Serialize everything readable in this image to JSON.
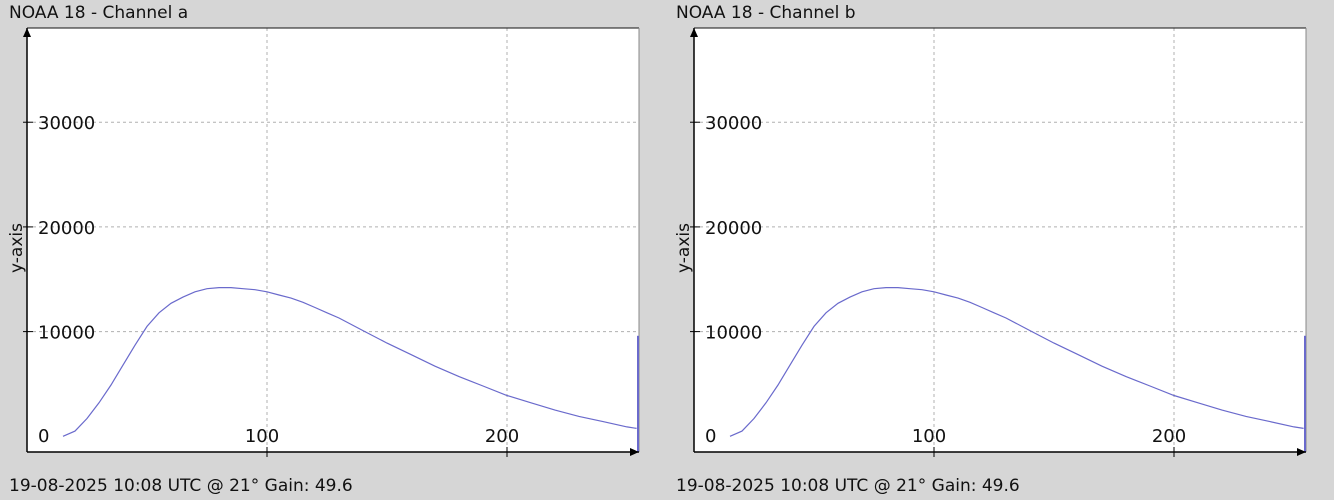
{
  "chart_data": [
    {
      "type": "line",
      "title": "NOAA 18 - Channel a",
      "footer": "19-08-2025 10:08 UTC @ 21° Gain: 49.6",
      "ylabel": "y-axis",
      "xlabel": "",
      "xlim": [
        0,
        255
      ],
      "ylim": [
        -1500,
        39000
      ],
      "xticks": [
        100,
        200
      ],
      "yticks": [
        0,
        10000,
        20000,
        30000
      ],
      "grid": true,
      "series_color": "#6a6acc",
      "series": [
        {
          "x": [
            15,
            20,
            25,
            30,
            35,
            40,
            45,
            50,
            55,
            60,
            65,
            70,
            75,
            80,
            85,
            90,
            95,
            100,
            105,
            110,
            115,
            120,
            125,
            130,
            140,
            150,
            160,
            170,
            180,
            190,
            200,
            210,
            220,
            230,
            240,
            250,
            254
          ],
          "y": [
            0,
            500,
            1700,
            3200,
            4900,
            6800,
            8700,
            10500,
            11800,
            12700,
            13300,
            13800,
            14100,
            14200,
            14200,
            14100,
            14000,
            13800,
            13500,
            13200,
            12800,
            12300,
            11800,
            11300,
            10100,
            8900,
            7800,
            6700,
            5700,
            4800,
            3900,
            3200,
            2500,
            1900,
            1400,
            900,
            750
          ]
        }
      ],
      "end_spike": {
        "x": 255,
        "y": 9600
      }
    },
    {
      "type": "line",
      "title": "NOAA 18 - Channel b",
      "footer": "19-08-2025 10:08 UTC @ 21° Gain: 49.6",
      "ylabel": "y-axis",
      "xlabel": "",
      "xlim": [
        0,
        255
      ],
      "ylim": [
        -1500,
        39000
      ],
      "xticks": [
        100,
        200
      ],
      "yticks": [
        0,
        10000,
        20000,
        30000
      ],
      "grid": true,
      "series_color": "#6a6acc",
      "series": [
        {
          "x": [
            15,
            20,
            25,
            30,
            35,
            40,
            45,
            50,
            55,
            60,
            65,
            70,
            75,
            80,
            85,
            90,
            95,
            100,
            105,
            110,
            115,
            120,
            125,
            130,
            140,
            150,
            160,
            170,
            180,
            190,
            200,
            210,
            220,
            230,
            240,
            250,
            254
          ],
          "y": [
            0,
            500,
            1700,
            3200,
            4900,
            6800,
            8700,
            10500,
            11800,
            12700,
            13300,
            13800,
            14100,
            14200,
            14200,
            14100,
            14000,
            13800,
            13500,
            13200,
            12800,
            12300,
            11800,
            11300,
            10100,
            8900,
            7800,
            6700,
            5700,
            4800,
            3900,
            3200,
            2500,
            1900,
            1400,
            900,
            750
          ]
        }
      ],
      "end_spike": {
        "x": 255,
        "y": 9600
      }
    }
  ]
}
